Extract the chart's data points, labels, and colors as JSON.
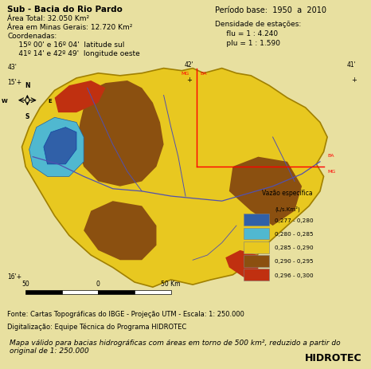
{
  "title_info": {
    "line1": "Sub - Bacia do Rio Pardo",
    "line2": "Área Total: 32.050 Km²",
    "line3": "Área em Minas Gerais: 12.720 Km²",
    "line4": "Coordenadas:",
    "line5": "     15º 00' e 16º 04'  latitude sul",
    "line6": "     41º 14' e 42º 49'  longitude oeste",
    "right1": "Período base:  1950  a  2010",
    "right2": "Densidade de estações:",
    "right3": "     flu = 1 : 4.240",
    "right4": "     plu = 1 : 1.590"
  },
  "legend": {
    "title": "Vazão específica",
    "subtitle": "(L/s.Km²)",
    "entries": [
      {
        "label": "0,277 - 0,280",
        "color": "#3060a8"
      },
      {
        "label": "0,280 - 0,285",
        "color": "#50b8d0"
      },
      {
        "label": "0,285 - 0,290",
        "color": "#e8c820"
      },
      {
        "label": "0,290 - 0,295",
        "color": "#8b5010"
      },
      {
        "label": "0,296 - 0,300",
        "color": "#c03010"
      }
    ]
  },
  "footer_left1": "Fonte: Cartas Topográficas do IBGE - Projeção UTM - Escala: 1: 250.000",
  "footer_left2": "Digitalização: Equipe Técnica do Programa HIDROTEC",
  "footer_box": "Mapa válido para bacias hidrográficas com áreas em torno de 500 km², reduzido a partir do\noriginal de 1: 250.000",
  "footer_brand": "HIDROTEC",
  "header_bg": "#f0e8a0",
  "map_bg": "#c8dfc8",
  "footer_box_bg": "#f0e870",
  "outer_bg": "#e8e0a0",
  "border_color": "#b8a000",
  "map_colors": {
    "blue_dark": "#3060a8",
    "blue_light": "#50b8d0",
    "yellow": "#e8c820",
    "brown": "#8b5010",
    "red_orange": "#c03010",
    "outline": "#a08000"
  }
}
